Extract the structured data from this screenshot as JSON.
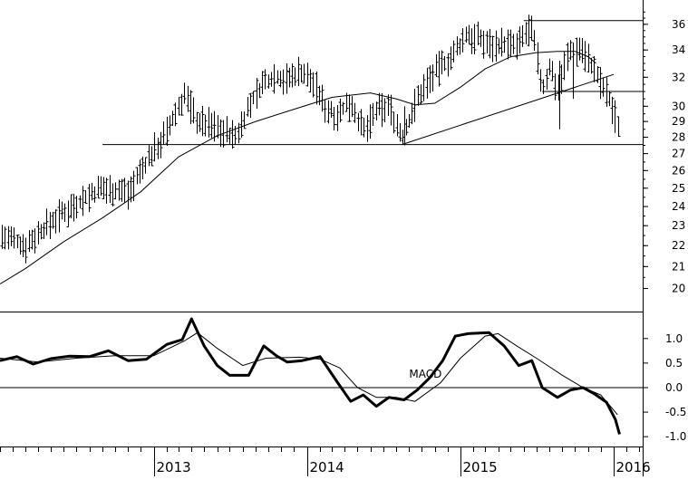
{
  "chart_data": [
    {
      "type": "line",
      "subtype": "ohlc-weekly-with-moving-average",
      "title": "",
      "xlabel": "",
      "ylabel": "",
      "y_scale": "log",
      "ylim": [
        19,
        38
      ],
      "y_ticks": [
        20,
        21,
        22,
        23,
        24,
        25,
        26,
        27,
        28,
        29,
        30,
        32,
        34,
        36
      ],
      "x_range": [
        "2012-01-01",
        "2016-03-10"
      ],
      "x_ticks": [
        {
          "date": "2013-01-01",
          "label": "2013"
        },
        {
          "date": "2014-01-01",
          "label": "2014"
        },
        {
          "date": "2015-01-01",
          "label": "2015"
        },
        {
          "date": "2016-01-01",
          "label": "2016"
        }
      ],
      "series": [
        {
          "kind": "price",
          "x": [
            "2012-01-01",
            "2012-03-01",
            "2012-05-01",
            "2012-07-01",
            "2012-09-01",
            "2012-11-01",
            "2013-01-01",
            "2013-02-01",
            "2013-03-15",
            "2013-04-15",
            "2013-05-15",
            "2013-06-15",
            "2013-07-15",
            "2013-08-15",
            "2013-09-15",
            "2013-10-15",
            "2013-11-15",
            "2013-12-15",
            "2014-01-15",
            "2014-02-15",
            "2014-03-15",
            "2014-04-15",
            "2014-05-15",
            "2014-06-15",
            "2014-07-15",
            "2014-08-15",
            "2014-09-15",
            "2014-10-15",
            "2014-11-15",
            "2014-12-15",
            "2015-01-15",
            "2015-02-15",
            "2015-03-15",
            "2015-04-15",
            "2015-05-15",
            "2015-06-15",
            "2015-07-01",
            "2015-07-15",
            "2015-08-01",
            "2015-08-20",
            "2015-09-15",
            "2015-10-15",
            "2015-11-01",
            "2015-11-15",
            "2015-12-01",
            "2015-12-15",
            "2016-01-01",
            "2016-01-15"
          ],
          "values": [
            22.5,
            22.0,
            23.2,
            24.2,
            25.0,
            24.8,
            27.2,
            28.3,
            30.8,
            29.0,
            28.8,
            28.4,
            28.0,
            30.0,
            31.5,
            32.1,
            31.8,
            32.5,
            31.6,
            29.8,
            29.5,
            30.3,
            28.3,
            29.7,
            30.0,
            27.9,
            30.2,
            31.8,
            32.8,
            33.6,
            35.2,
            34.8,
            34.4,
            34.5,
            34.2,
            35.8,
            33.7,
            31.0,
            32.8,
            31.2,
            33.8,
            34.2,
            33.3,
            32.5,
            31.5,
            30.8,
            29.6,
            28.5
          ]
        },
        {
          "kind": "moving-average",
          "x": [
            "2012-01-01",
            "2012-03-01",
            "2012-06-01",
            "2012-09-01",
            "2012-12-01",
            "2013-03-01",
            "2013-06-01",
            "2013-09-01",
            "2013-12-01",
            "2014-03-01",
            "2014-06-01",
            "2014-08-01",
            "2014-09-15",
            "2014-11-01",
            "2015-01-01",
            "2015-03-01",
            "2015-05-01",
            "2015-07-01",
            "2015-08-20",
            "2015-10-01",
            "2015-11-01",
            "2015-11-20"
          ],
          "values": [
            20.2,
            20.9,
            22.2,
            23.4,
            24.8,
            26.8,
            28.1,
            29.0,
            29.8,
            30.6,
            30.9,
            30.5,
            30.1,
            30.2,
            31.3,
            32.6,
            33.5,
            33.8,
            33.9,
            33.9,
            33.5,
            33.0
          ]
        }
      ],
      "horizontal_lines": [
        27.55,
        31.0,
        36.3
      ],
      "trendline": {
        "x": [
          "2014-08-15",
          "2016-01-01"
        ],
        "values": [
          27.55,
          32.2
        ]
      }
    },
    {
      "type": "line",
      "title": "",
      "annotations": [
        "MACD"
      ],
      "ylim": [
        -1.2,
        1.55
      ],
      "y_ticks": [
        1.0,
        0.5,
        0.0,
        -0.5,
        -1.0
      ],
      "y_tick_labels": [
        "1.0",
        "0.5",
        "0.0",
        "-0.5",
        "-1.0"
      ],
      "zero_line": 0.0,
      "x_ticks": [
        {
          "date": "2013-01-01",
          "label": "2013"
        },
        {
          "date": "2014-01-01",
          "label": "2014"
        },
        {
          "date": "2015-01-01",
          "label": "2015"
        },
        {
          "date": "2016-01-01",
          "label": "2016"
        }
      ],
      "series": [
        {
          "kind": "macd",
          "x": [
            "2012-01-01",
            "2012-02-10",
            "2012-03-20",
            "2012-05-01",
            "2012-06-15",
            "2012-08-01",
            "2012-09-15",
            "2012-11-01",
            "2012-12-15",
            "2013-02-01",
            "2013-03-10",
            "2013-04-01",
            "2013-05-01",
            "2013-06-01",
            "2013-07-01",
            "2013-08-15",
            "2013-09-20",
            "2013-10-20",
            "2013-11-15",
            "2013-12-20",
            "2014-02-01",
            "2014-03-15",
            "2014-04-15",
            "2014-05-15",
            "2014-06-15",
            "2014-07-15",
            "2014-08-20",
            "2014-09-20",
            "2014-10-20",
            "2014-11-20",
            "2014-12-20",
            "2015-01-20",
            "2015-03-10",
            "2015-04-15",
            "2015-05-20",
            "2015-06-20",
            "2015-07-15",
            "2015-08-20",
            "2015-09-20",
            "2015-10-20",
            "2015-11-15",
            "2015-12-15",
            "2016-01-05",
            "2016-01-15"
          ],
          "values": [
            0.55,
            0.63,
            0.48,
            0.59,
            0.64,
            0.63,
            0.75,
            0.55,
            0.58,
            0.88,
            0.98,
            1.4,
            0.85,
            0.45,
            0.25,
            0.25,
            0.85,
            0.65,
            0.52,
            0.55,
            0.63,
            0.1,
            -0.28,
            -0.15,
            -0.38,
            -0.2,
            -0.25,
            -0.05,
            0.2,
            0.55,
            1.05,
            1.1,
            1.12,
            0.85,
            0.45,
            0.55,
            0.0,
            -0.2,
            -0.05,
            0.0,
            -0.12,
            -0.3,
            -0.65,
            -0.95
          ]
        },
        {
          "kind": "signal",
          "x": [
            "2012-01-01",
            "2012-04-01",
            "2012-07-01",
            "2012-10-01",
            "2013-01-01",
            "2013-03-15",
            "2013-04-15",
            "2013-06-01",
            "2013-08-01",
            "2013-09-25",
            "2013-12-15",
            "2014-02-01",
            "2014-03-20",
            "2014-05-01",
            "2014-06-15",
            "2014-08-01",
            "2014-09-15",
            "2014-11-15",
            "2015-01-01",
            "2015-03-01",
            "2015-04-01",
            "2015-05-15",
            "2015-07-01",
            "2015-09-01",
            "2015-10-20",
            "2015-12-01",
            "2016-01-10"
          ],
          "values": [
            0.6,
            0.52,
            0.6,
            0.65,
            0.65,
            0.95,
            1.12,
            0.8,
            0.45,
            0.6,
            0.62,
            0.58,
            0.4,
            0.0,
            -0.2,
            -0.2,
            -0.28,
            0.1,
            0.6,
            1.05,
            1.1,
            0.85,
            0.6,
            0.25,
            0.0,
            -0.15,
            -0.55
          ]
        }
      ]
    }
  ]
}
